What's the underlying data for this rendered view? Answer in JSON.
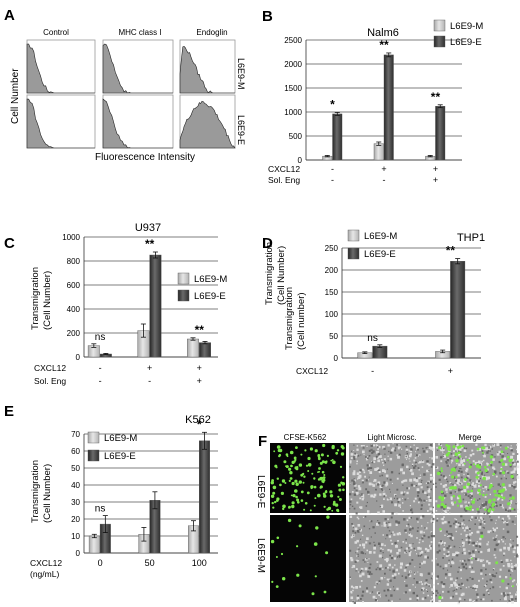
{
  "colors": {
    "m": "#c4c4c4",
    "e": "#3d3d3d",
    "grid": "#555555",
    "hist": "#9a9a9a",
    "cells": "#7ce54a"
  },
  "legend": [
    "L6E9-M",
    "L6E9-E"
  ],
  "panel_a": {
    "letter": "A",
    "columns": [
      "Control",
      "MHC class I",
      "Endoglin"
    ],
    "rows": [
      "L6E9-M",
      "L6E9-E"
    ],
    "ylabel": "Cell Number",
    "xlabel": "Fluorescence  Intensity"
  },
  "panel_f": {
    "letter": "F",
    "columns": [
      "CFSE-K562",
      "Light  Microsc.",
      "Merge"
    ],
    "rows": [
      "L6E9-E",
      "L6E9-M"
    ]
  },
  "chart_data": [
    {
      "panel": "B",
      "type": "bar",
      "title": "Nalm6",
      "ylabel": [
        "Transmigration",
        "(Cell  Number)"
      ],
      "ylim": [
        0,
        2500
      ],
      "yticks": [
        0,
        500,
        1000,
        1500,
        2000,
        2500
      ],
      "grid": true,
      "legend_position": "top-right",
      "row_labels": [
        "CXCL12",
        "Sol. Eng"
      ],
      "groups": [
        [
          "-",
          "-"
        ],
        [
          "+",
          "-"
        ],
        [
          "+",
          "+"
        ]
      ],
      "series": [
        {
          "name": "L6E9-M",
          "values": [
            80,
            340,
            80
          ],
          "errors": [
            15,
            35,
            15
          ]
        },
        {
          "name": "L6E9-E",
          "values": [
            960,
            2190,
            1120
          ],
          "errors": [
            30,
            40,
            30
          ]
        }
      ],
      "annotations": [
        "*",
        "**",
        "**"
      ]
    },
    {
      "panel": "C",
      "type": "bar",
      "title": "U937",
      "ylabel": [
        "Transmigration",
        "(Cell Number)"
      ],
      "ylim": [
        0,
        1000
      ],
      "yticks": [
        0,
        200,
        400,
        600,
        800,
        1000
      ],
      "grid": true,
      "legend_position": "top-right",
      "row_labels": [
        "CXCL12",
        "Sol. Eng"
      ],
      "groups": [
        [
          "-",
          "-"
        ],
        [
          "+",
          "-"
        ],
        [
          "+",
          "+"
        ]
      ],
      "series": [
        {
          "name": "L6E9-M",
          "values": [
            95,
            220,
            150
          ],
          "errors": [
            15,
            55,
            10
          ]
        },
        {
          "name": "L6E9-E",
          "values": [
            25,
            850,
            120
          ],
          "errors": [
            5,
            25,
            10
          ]
        }
      ],
      "annotations": [
        "ns",
        "**",
        "**"
      ]
    },
    {
      "panel": "D",
      "type": "bar",
      "title": "THP1",
      "ylabel": [
        "Transmigration",
        "(Cell number)"
      ],
      "ylim": [
        0,
        250
      ],
      "yticks": [
        0,
        50,
        100,
        150,
        200,
        250
      ],
      "grid": true,
      "legend_position": "top-left",
      "row_labels": [
        "CXCL12"
      ],
      "groups": [
        [
          "-"
        ],
        [
          "+"
        ]
      ],
      "series": [
        {
          "name": "L6E9-M",
          "values": [
            12,
            15
          ],
          "errors": [
            2,
            3
          ]
        },
        {
          "name": "L6E9-E",
          "values": [
            27,
            220
          ],
          "errors": [
            3,
            6
          ]
        }
      ],
      "annotations": [
        "ns",
        "**"
      ]
    },
    {
      "panel": "E",
      "type": "bar",
      "title": "K562",
      "ylabel": [
        "Transmigration",
        "(Cell Number)"
      ],
      "ylim": [
        0,
        70
      ],
      "yticks": [
        0,
        10,
        20,
        30,
        40,
        50,
        60,
        70
      ],
      "grid": true,
      "legend_position": "top-left",
      "row_labels": [
        "CXCL12",
        "(ng/mL)"
      ],
      "groups": [
        [
          "0"
        ],
        [
          "50"
        ],
        [
          "100"
        ]
      ],
      "series": [
        {
          "name": "L6E9-M",
          "values": [
            10,
            11,
            16
          ],
          "errors": [
            1,
            4,
            3
          ]
        },
        {
          "name": "L6E9-E",
          "values": [
            17,
            31,
            66
          ],
          "errors": [
            5,
            5,
            5
          ]
        }
      ],
      "annotations": [
        "ns",
        "",
        "*"
      ]
    }
  ]
}
